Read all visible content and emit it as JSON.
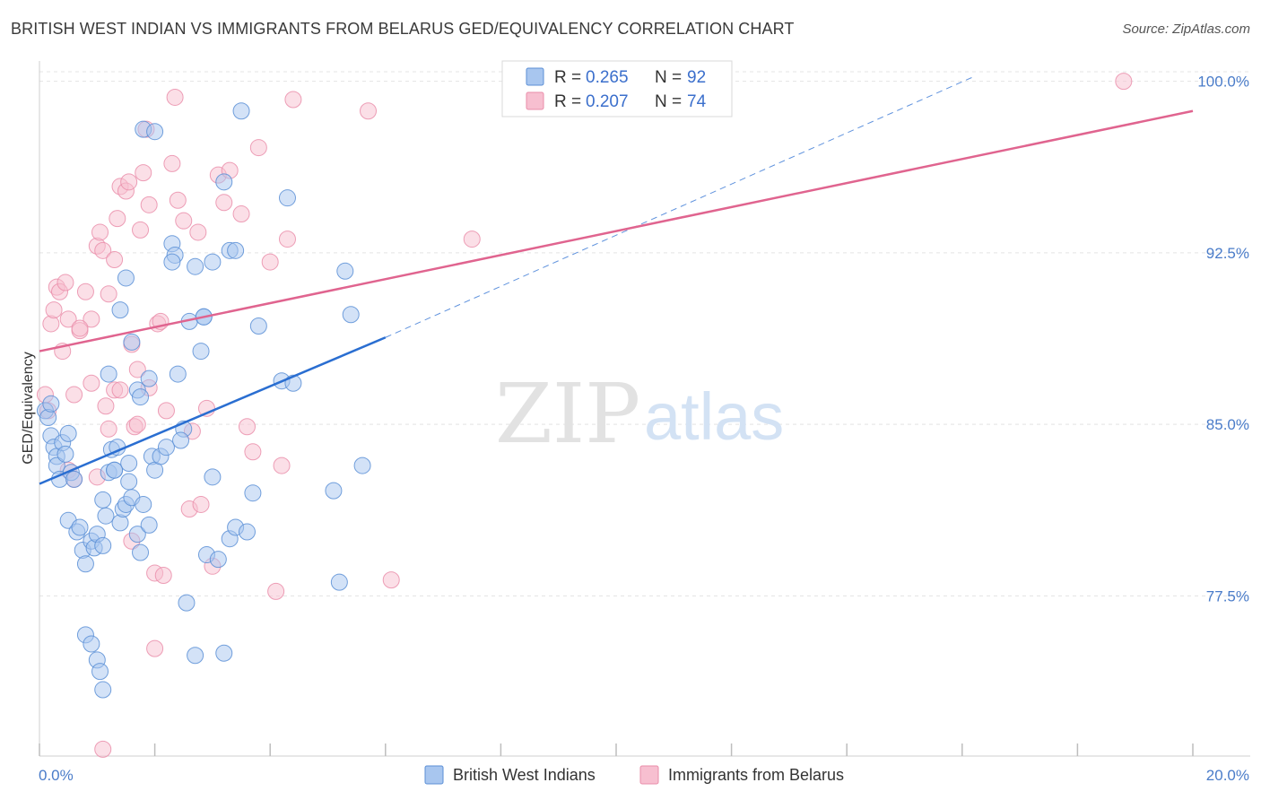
{
  "header": {
    "title": "BRITISH WEST INDIAN VS IMMIGRANTS FROM BELARUS GED/EQUIVALENCY CORRELATION CHART",
    "source": "Source: ZipAtlas.com"
  },
  "watermark": {
    "part1": "ZIP",
    "part2": "atlas"
  },
  "legend": {
    "rows": [
      {
        "r_label": "R = ",
        "r_value": "0.265",
        "n_label": "N = ",
        "n_value": "92"
      },
      {
        "r_label": "R = ",
        "r_value": "0.207",
        "n_label": "N = ",
        "n_value": "74"
      }
    ]
  },
  "bottom_legend": [
    "British West Indians",
    "Immigrants from Belarus"
  ],
  "colors": {
    "blue_fill": "#a8c6ef",
    "blue_stroke": "#5b8fd6",
    "blue_line": "#2a6ed1",
    "pink_fill": "#f7bfd0",
    "pink_stroke": "#ea8eaa",
    "pink_line": "#e0648f",
    "tick_label": "#4a7cc9",
    "grid": "#e4e4e4"
  },
  "chart_data": {
    "type": "scatter",
    "title": "BRITISH WEST INDIAN VS IMMIGRANTS FROM BELARUS GED/EQUIVALENCY CORRELATION CHART",
    "xlabel": "",
    "ylabel": "GED/Equivalency",
    "xlim": [
      0,
      20
    ],
    "ylim": [
      70.5,
      101.2
    ],
    "x_tick_labels": [
      "0.0%",
      "20.0%"
    ],
    "y_ticks": [
      77.5,
      85.0,
      92.5,
      100.0
    ],
    "y_tick_labels": [
      "77.5%",
      "85.0%",
      "92.5%",
      "100.0%"
    ],
    "grid": true,
    "series": [
      {
        "name": "British West Indians",
        "R": 0.265,
        "N": 92,
        "trend": {
          "x": [
            0.0,
            6.0
          ],
          "y": [
            82.4,
            88.8
          ],
          "extended_to": [
            16.2,
            100.2
          ]
        },
        "points": [
          [
            0.1,
            85.6
          ],
          [
            0.15,
            85.3
          ],
          [
            0.2,
            84.5
          ],
          [
            0.25,
            84.0
          ],
          [
            0.3,
            83.6
          ],
          [
            0.3,
            83.2
          ],
          [
            0.35,
            82.6
          ],
          [
            0.2,
            85.9
          ],
          [
            0.4,
            84.2
          ],
          [
            0.45,
            83.7
          ],
          [
            0.5,
            84.6
          ],
          [
            0.55,
            82.9
          ],
          [
            0.6,
            82.6
          ],
          [
            0.5,
            80.8
          ],
          [
            0.65,
            80.3
          ],
          [
            0.7,
            80.5
          ],
          [
            0.75,
            79.5
          ],
          [
            0.8,
            78.9
          ],
          [
            0.9,
            79.9
          ],
          [
            0.95,
            79.6
          ],
          [
            1.0,
            80.2
          ],
          [
            1.1,
            79.7
          ],
          [
            1.15,
            81.0
          ],
          [
            1.2,
            82.9
          ],
          [
            1.25,
            83.9
          ],
          [
            1.3,
            83.0
          ],
          [
            1.35,
            84.0
          ],
          [
            1.1,
            81.7
          ],
          [
            1.4,
            80.7
          ],
          [
            1.45,
            81.3
          ],
          [
            1.5,
            81.5
          ],
          [
            1.55,
            82.5
          ],
          [
            1.6,
            81.8
          ],
          [
            1.7,
            80.2
          ],
          [
            1.75,
            79.4
          ],
          [
            1.8,
            81.5
          ],
          [
            1.9,
            80.6
          ],
          [
            1.95,
            83.6
          ],
          [
            2.0,
            83.0
          ],
          [
            2.1,
            83.6
          ],
          [
            2.2,
            84.0
          ],
          [
            2.3,
            92.9
          ],
          [
            2.35,
            92.4
          ],
          [
            2.4,
            87.2
          ],
          [
            2.5,
            84.8
          ],
          [
            2.55,
            77.2
          ],
          [
            2.7,
            74.9
          ],
          [
            2.8,
            88.2
          ],
          [
            2.85,
            89.7
          ],
          [
            2.9,
            79.3
          ],
          [
            3.0,
            82.7
          ],
          [
            3.1,
            79.1
          ],
          [
            3.2,
            75.0
          ],
          [
            3.3,
            80.0
          ],
          [
            3.4,
            80.5
          ],
          [
            0.8,
            75.8
          ],
          [
            0.9,
            75.4
          ],
          [
            1.0,
            74.7
          ],
          [
            1.05,
            74.2
          ],
          [
            1.1,
            73.4
          ],
          [
            1.2,
            87.2
          ],
          [
            1.3,
            83.0
          ],
          [
            1.4,
            90.0
          ],
          [
            1.5,
            91.4
          ],
          [
            1.6,
            88.6
          ],
          [
            1.7,
            86.5
          ],
          [
            1.75,
            86.2
          ],
          [
            1.8,
            97.9
          ],
          [
            1.9,
            87.0
          ],
          [
            2.0,
            97.8
          ],
          [
            2.6,
            89.5
          ],
          [
            2.7,
            91.9
          ],
          [
            2.85,
            89.7
          ],
          [
            3.0,
            92.1
          ],
          [
            3.2,
            95.6
          ],
          [
            3.3,
            92.6
          ],
          [
            3.4,
            92.6
          ],
          [
            3.6,
            80.3
          ],
          [
            3.7,
            82.0
          ],
          [
            3.8,
            89.3
          ],
          [
            3.5,
            98.7
          ],
          [
            4.2,
            86.9
          ],
          [
            4.3,
            94.9
          ],
          [
            4.4,
            86.8
          ],
          [
            5.1,
            82.1
          ],
          [
            5.2,
            78.1
          ],
          [
            5.3,
            91.7
          ],
          [
            5.4,
            89.8
          ],
          [
            5.6,
            83.2
          ],
          [
            2.3,
            92.1
          ],
          [
            2.45,
            84.3
          ],
          [
            1.55,
            83.3
          ]
        ]
      },
      {
        "name": "Immigrants from Belarus",
        "R": 0.207,
        "N": 74,
        "trend": {
          "x": [
            0.0,
            20.0
          ],
          "y": [
            88.2,
            98.7
          ]
        },
        "points": [
          [
            0.1,
            86.3
          ],
          [
            0.15,
            85.6
          ],
          [
            0.2,
            89.4
          ],
          [
            0.25,
            90.0
          ],
          [
            0.3,
            91.0
          ],
          [
            0.35,
            90.8
          ],
          [
            0.4,
            88.2
          ],
          [
            0.45,
            91.2
          ],
          [
            0.5,
            89.6
          ],
          [
            0.6,
            86.3
          ],
          [
            0.7,
            89.1
          ],
          [
            0.8,
            90.8
          ],
          [
            0.9,
            89.6
          ],
          [
            1.0,
            92.8
          ],
          [
            1.05,
            93.4
          ],
          [
            1.1,
            92.6
          ],
          [
            1.15,
            85.8
          ],
          [
            1.2,
            90.7
          ],
          [
            1.3,
            92.2
          ],
          [
            1.35,
            94.0
          ],
          [
            1.4,
            95.4
          ],
          [
            1.5,
            95.2
          ],
          [
            1.55,
            95.6
          ],
          [
            1.6,
            88.5
          ],
          [
            1.65,
            84.9
          ],
          [
            1.7,
            85.0
          ],
          [
            1.75,
            93.5
          ],
          [
            1.8,
            96.0
          ],
          [
            1.85,
            97.9
          ],
          [
            1.9,
            94.6
          ],
          [
            2.0,
            78.5
          ],
          [
            2.05,
            89.4
          ],
          [
            2.1,
            89.5
          ],
          [
            2.15,
            78.4
          ],
          [
            2.2,
            85.6
          ],
          [
            2.3,
            96.4
          ],
          [
            2.35,
            99.3
          ],
          [
            2.4,
            94.8
          ],
          [
            2.5,
            93.9
          ],
          [
            2.6,
            81.3
          ],
          [
            2.65,
            84.7
          ],
          [
            2.75,
            93.4
          ],
          [
            2.8,
            81.5
          ],
          [
            2.9,
            85.7
          ],
          [
            3.0,
            78.8
          ],
          [
            3.1,
            95.9
          ],
          [
            3.2,
            94.7
          ],
          [
            3.3,
            96.1
          ],
          [
            3.5,
            94.2
          ],
          [
            3.6,
            84.9
          ],
          [
            3.7,
            83.8
          ],
          [
            3.8,
            97.1
          ],
          [
            4.0,
            92.1
          ],
          [
            4.1,
            77.7
          ],
          [
            4.2,
            83.2
          ],
          [
            4.3,
            93.1
          ],
          [
            4.4,
            99.2
          ],
          [
            5.7,
            98.7
          ],
          [
            6.1,
            78.2
          ],
          [
            7.5,
            93.1
          ],
          [
            18.8,
            100.0
          ],
          [
            0.5,
            83.0
          ],
          [
            0.6,
            82.6
          ],
          [
            0.9,
            86.8
          ],
          [
            1.0,
            82.7
          ],
          [
            1.2,
            84.8
          ],
          [
            1.3,
            86.5
          ],
          [
            1.4,
            86.5
          ],
          [
            1.6,
            79.9
          ],
          [
            1.7,
            87.4
          ],
          [
            1.9,
            86.6
          ],
          [
            2.0,
            75.2
          ],
          [
            1.1,
            70.8
          ],
          [
            0.7,
            89.2
          ]
        ]
      }
    ]
  }
}
